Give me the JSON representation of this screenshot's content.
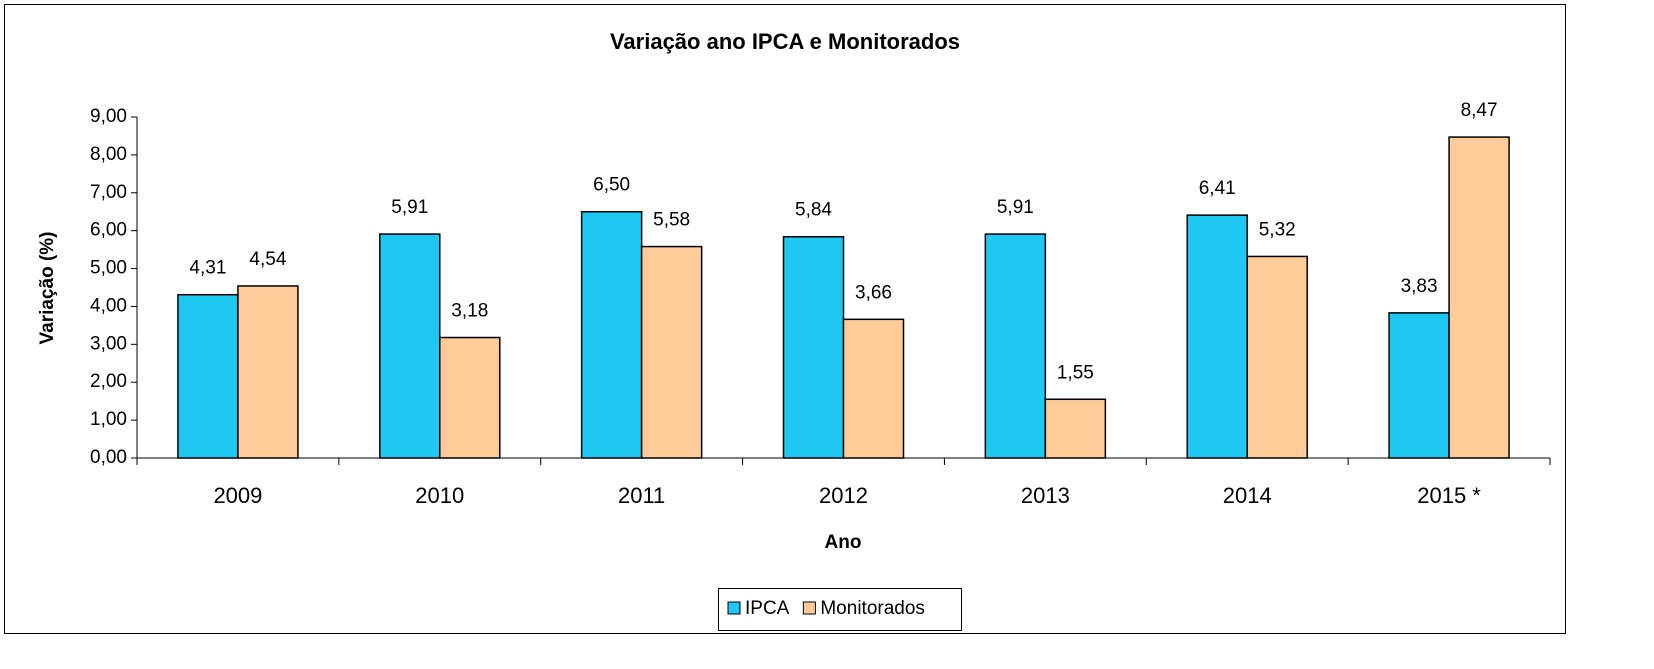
{
  "chart_data": {
    "type": "bar",
    "title": "Variação ano IPCA e Monitorados",
    "x_label": "Ano",
    "y_label": "Variação (%)",
    "categories": [
      "2009",
      "2010",
      "2011",
      "2012",
      "2013",
      "2014",
      "2015 *"
    ],
    "series": [
      {
        "name": "IPCA",
        "color": "#1ec8f0",
        "values": [
          4.31,
          5.91,
          6.5,
          5.84,
          5.91,
          6.41,
          3.83
        ],
        "value_labels": [
          "4,31",
          "5,91",
          "6,50",
          "5,84",
          "5,91",
          "6,41",
          "3,83"
        ]
      },
      {
        "name": "Monitorados",
        "color": "#ffcc99",
        "values": [
          4.54,
          3.18,
          5.58,
          3.66,
          1.55,
          5.32,
          8.47
        ],
        "value_labels": [
          "4,54",
          "3,18",
          "5,58",
          "3,66",
          "1,55",
          "5,32",
          "8,47"
        ]
      }
    ],
    "ylim": [
      0,
      9
    ],
    "yticks": [
      {
        "value": 0,
        "label": "0,00"
      },
      {
        "value": 1,
        "label": "1,00"
      },
      {
        "value": 2,
        "label": "2,00"
      },
      {
        "value": 3,
        "label": "3,00"
      },
      {
        "value": 4,
        "label": "4,00"
      },
      {
        "value": 5,
        "label": "5,00"
      },
      {
        "value": 6,
        "label": "6,00"
      },
      {
        "value": 7,
        "label": "7,00"
      },
      {
        "value": 8,
        "label": "8,00"
      },
      {
        "value": 9,
        "label": "9,00"
      }
    ],
    "legend": "bottom"
  }
}
